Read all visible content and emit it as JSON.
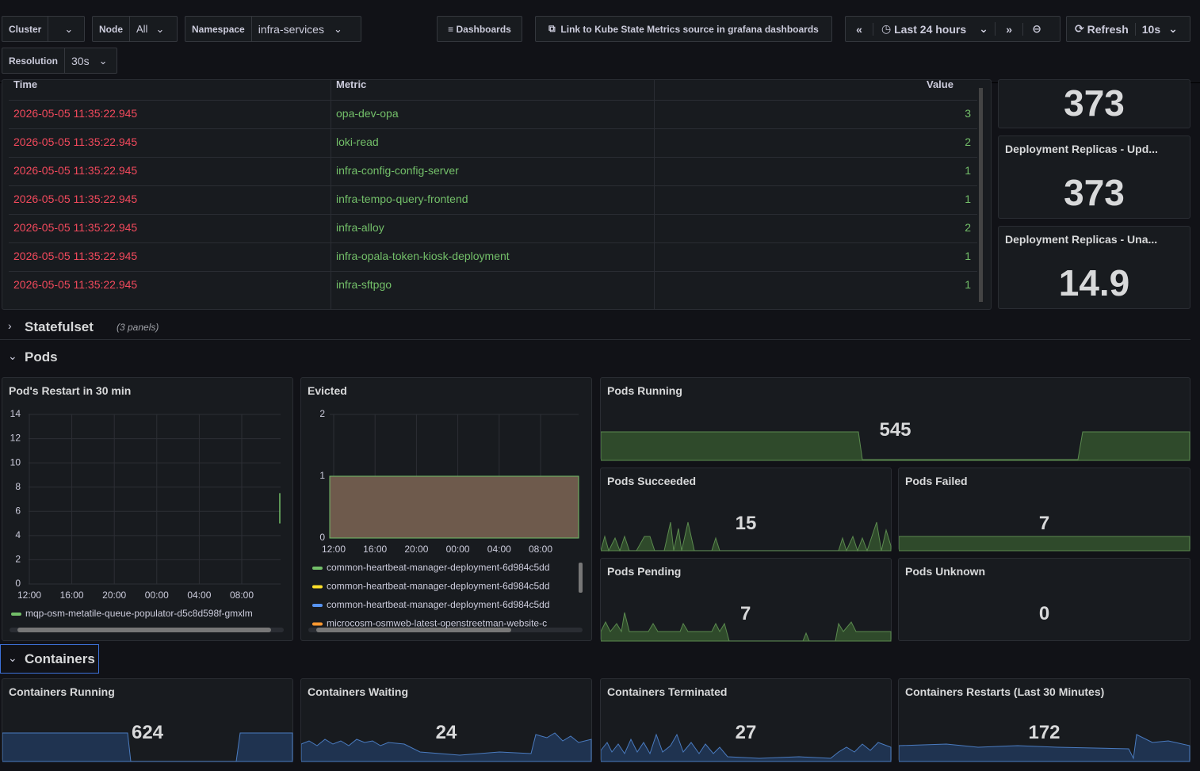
{
  "toolbar": {
    "cluster_label": "Cluster",
    "node_label": "Node",
    "node_value": "All",
    "namespace_label": "Namespace",
    "namespace_value": "infra-services",
    "dashboards": "Dashboards",
    "link": "Link to Kube State Metrics source in grafana dashboards",
    "time_range": "Last 24 hours",
    "refresh": "Refresh",
    "refresh_interval": "10s",
    "resolution_label": "Resolution",
    "resolution_value": "30s"
  },
  "table": {
    "headers": [
      "Time",
      "Metric",
      "Value"
    ],
    "rows": [
      [
        "2026-05-05 11:35:22.945",
        "opa-dev-opa",
        3
      ],
      [
        "2026-05-05 11:35:22.945",
        "loki-read",
        2
      ],
      [
        "2026-05-05 11:35:22.945",
        "infra-config-config-server",
        1
      ],
      [
        "2026-05-05 11:35:22.945",
        "infra-tempo-query-frontend",
        1
      ],
      [
        "2026-05-05 11:35:22.945",
        "infra-alloy",
        2
      ],
      [
        "2026-05-05 11:35:22.945",
        "infra-opala-token-kiosk-deployment",
        1
      ],
      [
        "2026-05-05 11:35:22.945",
        "infra-sftpgo",
        1
      ]
    ]
  },
  "deployment_stats": [
    {
      "value": 373
    },
    {
      "title": "Deployment Replicas - Upd...",
      "value": 373
    },
    {
      "title": "Deployment Replicas - Una...",
      "value": 14.9
    }
  ],
  "rows": {
    "statefulset": "Statefulset",
    "statefulset_note": "(3 panels)",
    "pods": "Pods",
    "containers": "Containers"
  },
  "pod_restart": {
    "title": "Pod's Restart in 30 min",
    "yticks": [
      0,
      2,
      4,
      6,
      8,
      10,
      12,
      14
    ],
    "ylim": [
      0,
      14
    ],
    "xticks": [
      "12:00",
      "16:00",
      "20:00",
      "00:00",
      "04:00",
      "08:00"
    ],
    "series": [
      {
        "name": "mqp-osm-metatile-queue-populator-d5c8d598f-gmxlm",
        "color": "#73bf69",
        "values": [
          7.5,
          5
        ]
      }
    ]
  },
  "evicted": {
    "title": "Evicted",
    "yticks": [
      0,
      1,
      2
    ],
    "ylim": [
      0,
      2
    ],
    "xticks": [
      "12:00",
      "16:00",
      "20:00",
      "00:00",
      "04:00",
      "08:00"
    ],
    "series": [
      {
        "name": "common-heartbeat-manager-deployment-6d984c5dd",
        "color": "#73bf69",
        "values": [
          1
        ]
      },
      {
        "name": "common-heartbeat-manager-deployment-6d984c5dd",
        "color": "#fade2a"
      },
      {
        "name": "common-heartbeat-manager-deployment-6d984c5dd",
        "color": "#5794f2"
      },
      {
        "name": "microcosm-osmweb-latest-openstreetman-website-c",
        "color": "#ff9830"
      }
    ]
  },
  "pod_stats": {
    "running": {
      "title": "Pods Running",
      "value": 545
    },
    "succeeded": {
      "title": "Pods Succeeded",
      "value": 15
    },
    "failed": {
      "title": "Pods Failed",
      "value": 7
    },
    "pending": {
      "title": "Pods Pending",
      "value": 7
    },
    "unknown": {
      "title": "Pods Unknown",
      "value": 0
    }
  },
  "container_stats": [
    {
      "title": "Containers Running",
      "value": 624
    },
    {
      "title": "Containers Waiting",
      "value": 24
    },
    {
      "title": "Containers Terminated",
      "value": 27
    },
    {
      "title": "Containers Restarts (Last 30 Minutes)",
      "value": 172
    }
  ]
}
